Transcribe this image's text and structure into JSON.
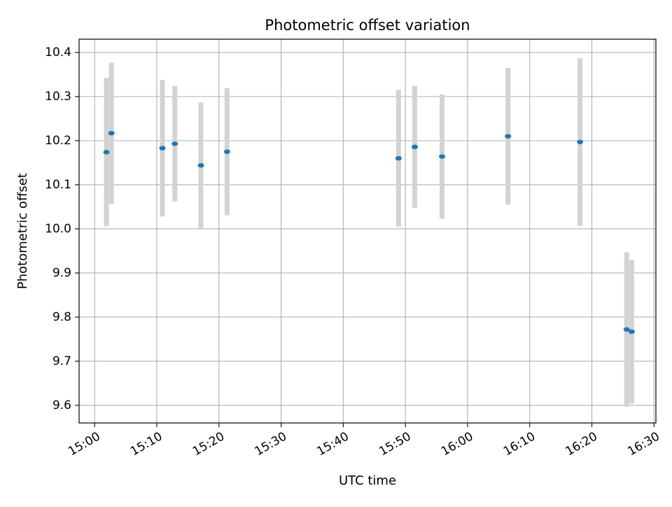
{
  "chart_data": {
    "type": "scatter",
    "title": "Photometric offset variation",
    "xlabel": "UTC time",
    "ylabel": "Photometric offset",
    "grid": true,
    "xlim_minutes": [
      -2.5,
      90.3
    ],
    "ylim": [
      9.56,
      10.43
    ],
    "x_ticks": [
      {
        "minutes": 0,
        "label": "15:00"
      },
      {
        "minutes": 10,
        "label": "15:10"
      },
      {
        "minutes": 20,
        "label": "15:20"
      },
      {
        "minutes": 30,
        "label": "15:30"
      },
      {
        "minutes": 40,
        "label": "15:40"
      },
      {
        "minutes": 50,
        "label": "15:50"
      },
      {
        "minutes": 60,
        "label": "16:00"
      },
      {
        "minutes": 70,
        "label": "16:10"
      },
      {
        "minutes": 80,
        "label": "16:20"
      },
      {
        "minutes": 90,
        "label": "16:30"
      }
    ],
    "y_ticks": [
      {
        "value": 9.6,
        "label": "9.6"
      },
      {
        "value": 9.7,
        "label": "9.7"
      },
      {
        "value": 9.8,
        "label": "9.8"
      },
      {
        "value": 9.9,
        "label": "9.9"
      },
      {
        "value": 10.0,
        "label": "10.0"
      },
      {
        "value": 10.1,
        "label": "10.1"
      },
      {
        "value": 10.2,
        "label": "10.2"
      },
      {
        "value": 10.3,
        "label": "10.3"
      },
      {
        "value": 10.4,
        "label": "10.4"
      }
    ],
    "series": [
      {
        "name": "photometric offset",
        "color": "#1f77b4",
        "errorbar_color": "#d3d3d3",
        "points": [
          {
            "time": "15:01:54",
            "minutes": 1.9,
            "y": 10.174,
            "err": 0.168
          },
          {
            "time": "15:02:42",
            "minutes": 2.7,
            "y": 10.217,
            "err": 0.16
          },
          {
            "time": "15:10:54",
            "minutes": 10.9,
            "y": 10.183,
            "err": 0.155
          },
          {
            "time": "15:12:54",
            "minutes": 12.9,
            "y": 10.193,
            "err": 0.131
          },
          {
            "time": "15:17:06",
            "minutes": 17.1,
            "y": 10.144,
            "err": 0.143
          },
          {
            "time": "15:21:18",
            "minutes": 21.3,
            "y": 10.175,
            "err": 0.144
          },
          {
            "time": "15:48:54",
            "minutes": 48.9,
            "y": 10.16,
            "err": 0.155
          },
          {
            "time": "15:51:30",
            "minutes": 51.5,
            "y": 10.186,
            "err": 0.138
          },
          {
            "time": "15:55:54",
            "minutes": 55.9,
            "y": 10.164,
            "err": 0.141
          },
          {
            "time": "16:06:30",
            "minutes": 66.5,
            "y": 10.21,
            "err": 0.155
          },
          {
            "time": "16:18:06",
            "minutes": 78.1,
            "y": 10.197,
            "err": 0.19
          },
          {
            "time": "16:25:36",
            "minutes": 85.6,
            "y": 9.772,
            "err": 0.175
          },
          {
            "time": "16:26:24",
            "minutes": 86.4,
            "y": 9.767,
            "err": 0.163
          }
        ]
      }
    ]
  }
}
